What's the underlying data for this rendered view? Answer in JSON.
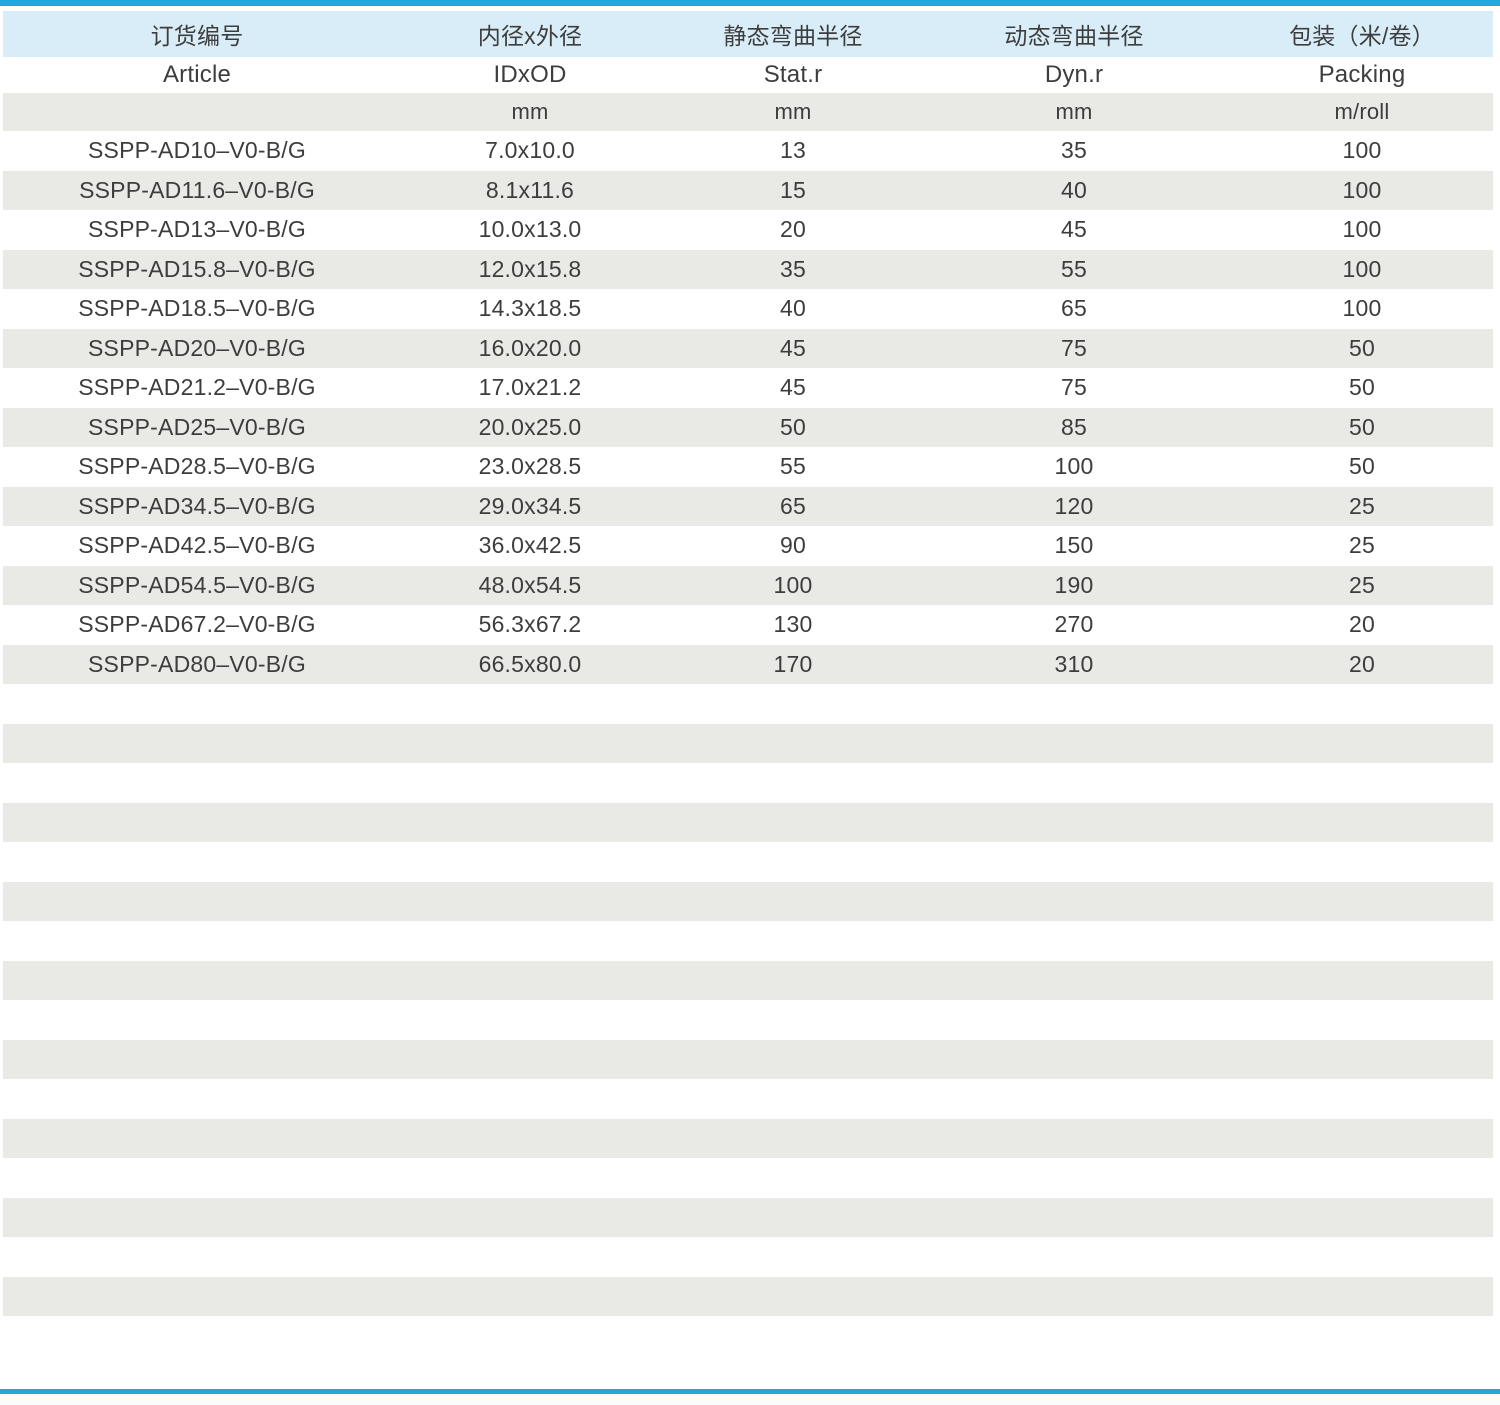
{
  "table": {
    "columns": [
      {
        "key": "article",
        "zh": "订货编号",
        "en": "Article",
        "unit": ""
      },
      {
        "key": "id_od",
        "zh": "内径x外径",
        "en": "IDxOD",
        "unit": "mm"
      },
      {
        "key": "stat_r",
        "zh": "静态弯曲半径",
        "en": "Stat.r",
        "unit": "mm"
      },
      {
        "key": "dyn_r",
        "zh": "动态弯曲半径",
        "en": "Dyn.r",
        "unit": "mm"
      },
      {
        "key": "packing",
        "zh": "包装（米/卷）",
        "en": "Packing",
        "unit": "m/roll"
      }
    ],
    "rows": [
      [
        "SSPP-AD10–V0-B/G",
        "7.0x10.0",
        "13",
        "35",
        "100"
      ],
      [
        "SSPP-AD11.6–V0-B/G",
        "8.1x11.6",
        "15",
        "40",
        "100"
      ],
      [
        "SSPP-AD13–V0-B/G",
        "10.0x13.0",
        "20",
        "45",
        "100"
      ],
      [
        "SSPP-AD15.8–V0-B/G",
        "12.0x15.8",
        "35",
        "55",
        "100"
      ],
      [
        "SSPP-AD18.5–V0-B/G",
        "14.3x18.5",
        "40",
        "65",
        "100"
      ],
      [
        "SSPP-AD20–V0-B/G",
        "16.0x20.0",
        "45",
        "75",
        "50"
      ],
      [
        "SSPP-AD21.2–V0-B/G",
        "17.0x21.2",
        "45",
        "75",
        "50"
      ],
      [
        "SSPP-AD25–V0-B/G",
        "20.0x25.0",
        "50",
        "85",
        "50"
      ],
      [
        "SSPP-AD28.5–V0-B/G",
        "23.0x28.5",
        "55",
        "100",
        "50"
      ],
      [
        "SSPP-AD34.5–V0-B/G",
        "29.0x34.5",
        "65",
        "120",
        "25"
      ],
      [
        "SSPP-AD42.5–V0-B/G",
        "36.0x42.5",
        "90",
        "150",
        "25"
      ],
      [
        "SSPP-AD54.5–V0-B/G",
        "48.0x54.5",
        "100",
        "190",
        "25"
      ],
      [
        "SSPP-AD67.2–V0-B/G",
        "56.3x67.2",
        "130",
        "270",
        "20"
      ],
      [
        "SSPP-AD80–V0-B/G",
        "66.5x80.0",
        "170",
        "310",
        "20"
      ]
    ],
    "empty_striped_rows": 16
  },
  "colors": {
    "rule_blue": "#1ea7e2",
    "header_light_blue": "#d9edf8",
    "stripe_gray": "#e9e9e5",
    "text": "#3d3d3d"
  }
}
